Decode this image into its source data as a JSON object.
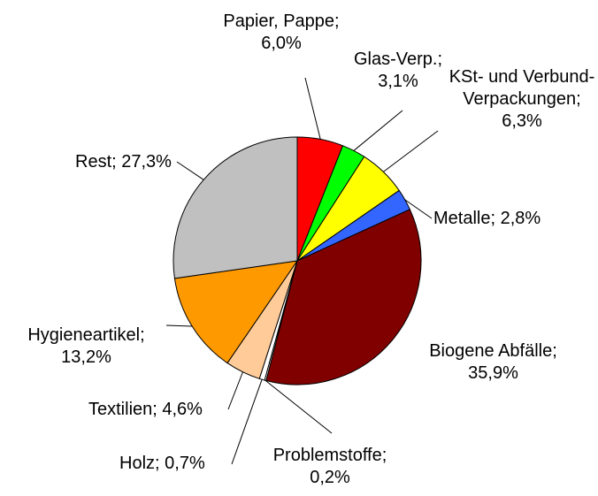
{
  "chart_data": {
    "type": "pie",
    "categories": [
      "Papier, Pappe;",
      "Glas-Verp.;",
      "KSt- und Verbund-Verpackungen;",
      "Metalle;",
      "Biogene Abfälle;",
      "Problemstoffe;",
      "Holz;",
      "Textilien;",
      "Hygieneartikel;",
      "Rest;"
    ],
    "values": [
      6.0,
      3.1,
      6.3,
      2.8,
      35.9,
      0.2,
      0.7,
      4.6,
      13.2,
      27.3
    ],
    "value_labels": [
      "6,0%",
      "3,1%",
      "6,3%",
      "2,8%",
      "35,9%",
      "0,2%",
      "0,7%",
      "4,6%",
      "13,2%",
      "27,3%"
    ],
    "colors": [
      "#ff0000",
      "#00ff00",
      "#ffff00",
      "#3366ff",
      "#800000",
      "#ffffff",
      "#ffffff",
      "#ffcc99",
      "#ff9900",
      "#c0c0c0"
    ]
  }
}
